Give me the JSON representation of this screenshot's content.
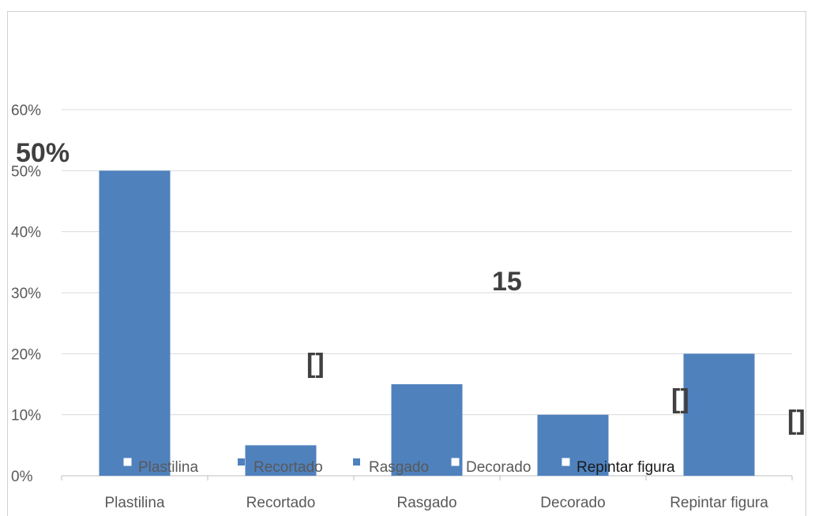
{
  "chart_data": {
    "type": "bar",
    "categories": [
      "Plastilina",
      "Recortado",
      "Rasgado",
      "Decorado",
      "Repintar figura"
    ],
    "values": [
      0.5,
      0.05,
      0.15,
      0.1,
      0.2
    ],
    "ylim": [
      0,
      0.6
    ],
    "yticks": [
      "0%",
      "10%",
      "20%",
      "30%",
      "40%",
      "50%",
      "60%"
    ],
    "grid": true,
    "bar_color": "#4f81bd",
    "legend_position": "bottom-inside",
    "legend": [
      {
        "label": "Plastilina",
        "marker": "hollow-square"
      },
      {
        "label": "Recortado",
        "marker": "filled-square"
      },
      {
        "label": "Rasgado",
        "marker": "filled-square"
      },
      {
        "label": "Decorado",
        "marker": "hollow-square"
      },
      {
        "label": "Repintar figura",
        "marker": "hollow-square"
      }
    ],
    "annotations": [
      {
        "text": "50%",
        "size": "large"
      },
      {
        "text": "15",
        "size": "large"
      },
      {
        "text": "[]",
        "size": "large"
      },
      {
        "text": "[]",
        "size": "large"
      },
      {
        "text": "[]",
        "size": "large"
      }
    ]
  }
}
